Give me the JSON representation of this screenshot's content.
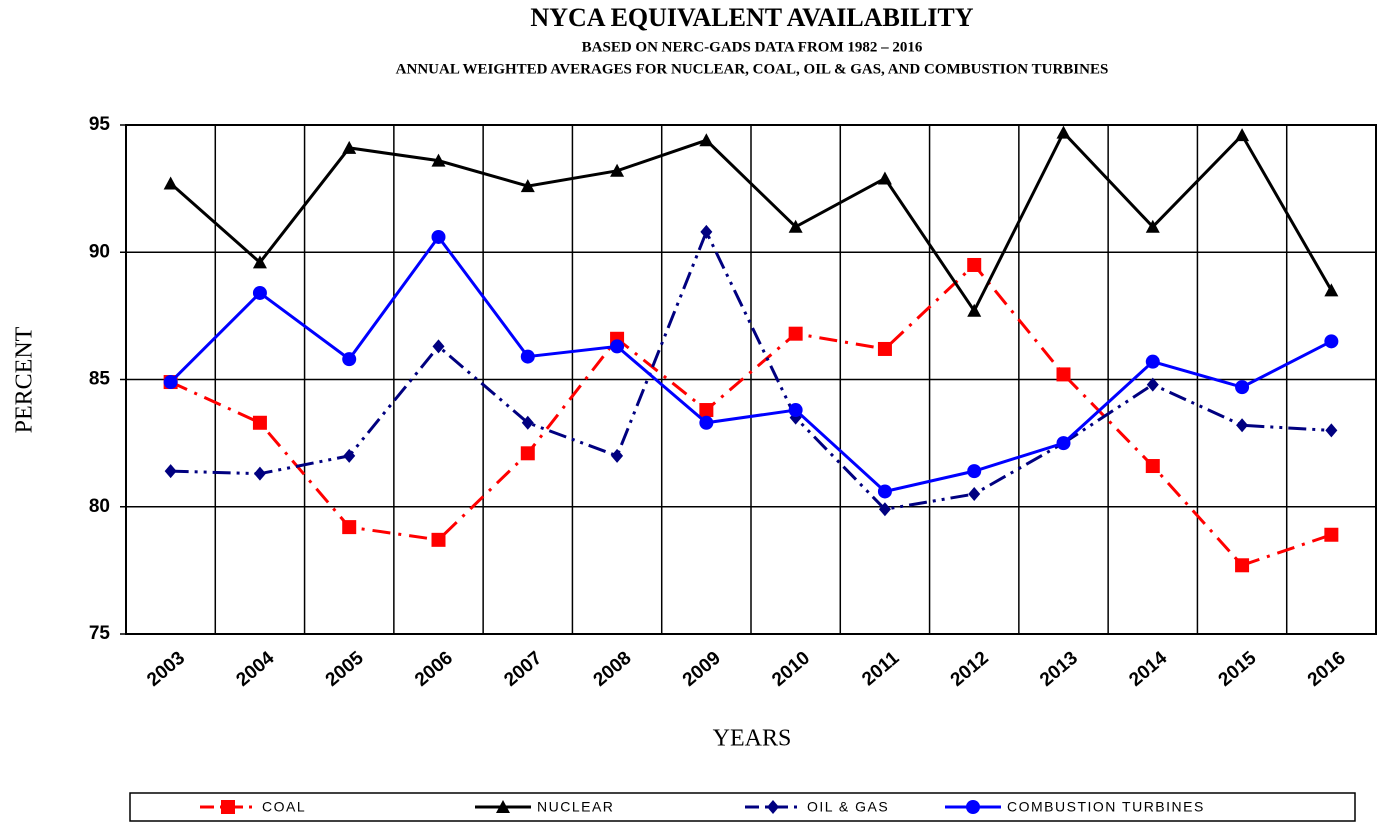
{
  "chart_data": {
    "type": "line",
    "title": "NYCA EQUIVALENT AVAILABILITY",
    "subtitle": "BASED ON NERC-GADS DATA FROM 1982 – 2016",
    "subtitle2": "ANNUAL WEIGHTED AVERAGES FOR NUCLEAR, COAL, OIL & GAS, AND COMBUSTION TURBINES",
    "x_label": "YEARS",
    "y_label": "PERCENT",
    "categories": [
      "2003",
      "2004",
      "2005",
      "2006",
      "2007",
      "2008",
      "2009",
      "2010",
      "2011",
      "2012",
      "2013",
      "2014",
      "2015",
      "2016"
    ],
    "ylim": [
      75,
      95
    ],
    "yticks": [
      75,
      80,
      85,
      90,
      95
    ],
    "grid": true,
    "legend": "bottom",
    "series": [
      {
        "name": "COAL",
        "color": "#ff0000",
        "marker": "square",
        "line": "dash-dot",
        "values": [
          84.9,
          83.3,
          79.2,
          78.7,
          82.1,
          86.6,
          83.8,
          86.8,
          86.2,
          89.5,
          85.2,
          81.6,
          77.7,
          78.9
        ]
      },
      {
        "name": "NUCLEAR",
        "color": "#000000",
        "marker": "triangle",
        "line": "solid",
        "values": [
          92.7,
          89.6,
          94.1,
          93.6,
          92.6,
          93.2,
          94.4,
          91.0,
          92.9,
          87.7,
          94.7,
          91.0,
          94.6,
          88.5
        ]
      },
      {
        "name": "OIL & GAS",
        "color": "#000080",
        "marker": "diamond",
        "line": "dash-dot-dot",
        "values": [
          81.4,
          81.3,
          82.0,
          86.3,
          83.3,
          82.0,
          90.8,
          83.5,
          79.9,
          80.5,
          82.5,
          84.8,
          83.2,
          83.0
        ]
      },
      {
        "name": "COMBUSTION TURBINES",
        "color": "#0000ff",
        "marker": "circle",
        "line": "solid",
        "values": [
          84.9,
          88.4,
          85.8,
          90.6,
          85.9,
          86.3,
          83.3,
          83.8,
          80.6,
          81.4,
          82.5,
          85.7,
          84.7,
          86.5
        ]
      }
    ]
  }
}
